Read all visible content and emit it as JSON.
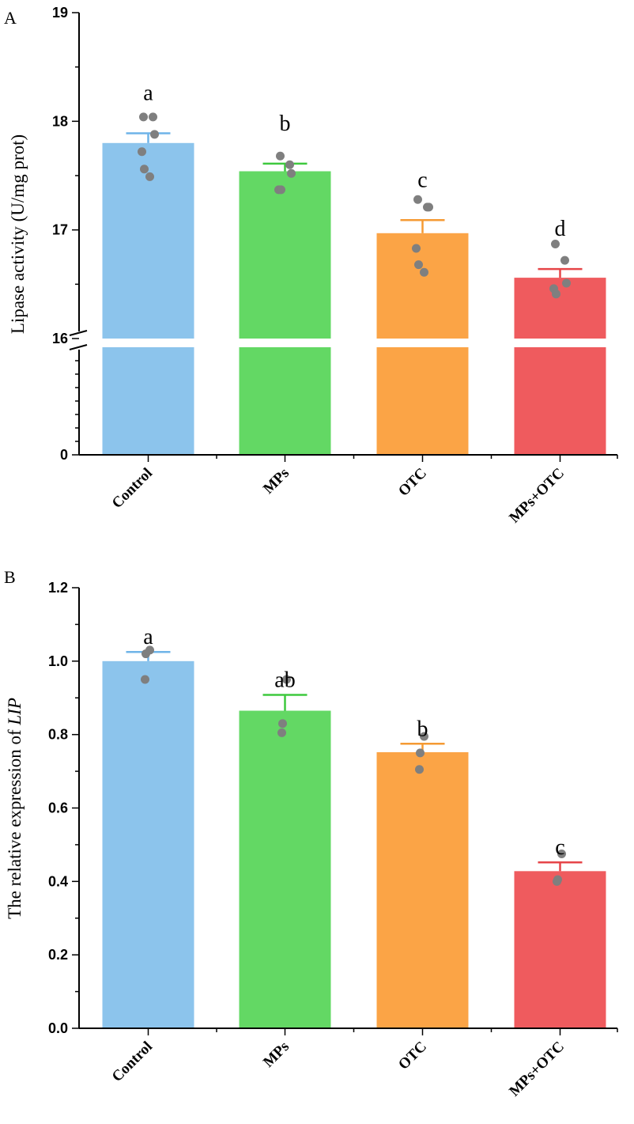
{
  "chart_data": [
    {
      "panel": "A",
      "type": "bar",
      "ylabel": "Lipase activity (U/mg prot)",
      "xlabel": "",
      "categories": [
        "Control",
        "MPs",
        "OTC",
        "MPs+OTC"
      ],
      "values": [
        17.8,
        17.54,
        16.97,
        16.56
      ],
      "errors": [
        0.09,
        0.07,
        0.12,
        0.08
      ],
      "significance": [
        "a",
        "b",
        "c",
        "d"
      ],
      "points": [
        [
          18.04,
          18.04,
          17.88,
          17.72,
          17.56,
          17.49
        ],
        [
          17.68,
          17.6,
          17.52,
          17.37,
          17.37
        ],
        [
          17.28,
          17.21,
          17.21,
          16.83,
          16.68,
          16.61
        ],
        [
          16.87,
          16.72,
          16.51,
          16.46,
          16.41
        ]
      ],
      "colors": [
        "#8cc4ec",
        "#63d864",
        "#fba446",
        "#ef5b5e"
      ],
      "error_colors": [
        "#6fb4e8",
        "#3ec93e",
        "#f59a33",
        "#e64548"
      ],
      "point_color": "#7f7f7f",
      "y_broken": true,
      "ylim": [
        0,
        19
      ],
      "upper_range": [
        16,
        19
      ],
      "lower_range": [
        0,
        16
      ],
      "yticks_major": [
        "0",
        "16",
        "17",
        "18",
        "19"
      ]
    },
    {
      "panel": "B",
      "type": "bar",
      "ylabel_prefix": "The relative expression of ",
      "ylabel_italic": "LIP",
      "xlabel": "",
      "categories": [
        "Control",
        "MPs",
        "OTC",
        "MPs+OTC"
      ],
      "values": [
        1.0,
        0.865,
        0.752,
        0.428
      ],
      "errors": [
        0.025,
        0.043,
        0.023,
        0.024
      ],
      "significance": [
        "a",
        "ab",
        "b",
        "c"
      ],
      "points": [
        [
          1.03,
          1.02,
          0.95
        ],
        [
          0.95,
          0.83,
          0.805
        ],
        [
          0.795,
          0.75,
          0.705
        ],
        [
          0.475,
          0.405,
          0.4
        ]
      ],
      "colors": [
        "#8cc4ec",
        "#63d864",
        "#fba446",
        "#ef5b5e"
      ],
      "error_colors": [
        "#6fb4e8",
        "#3ec93e",
        "#f59a33",
        "#e64548"
      ],
      "point_color": "#7f7f7f",
      "ylim": [
        0,
        1.2
      ],
      "yticks": [
        "0.0",
        "0.2",
        "0.4",
        "0.6",
        "0.8",
        "1.0",
        "1.2"
      ]
    }
  ]
}
